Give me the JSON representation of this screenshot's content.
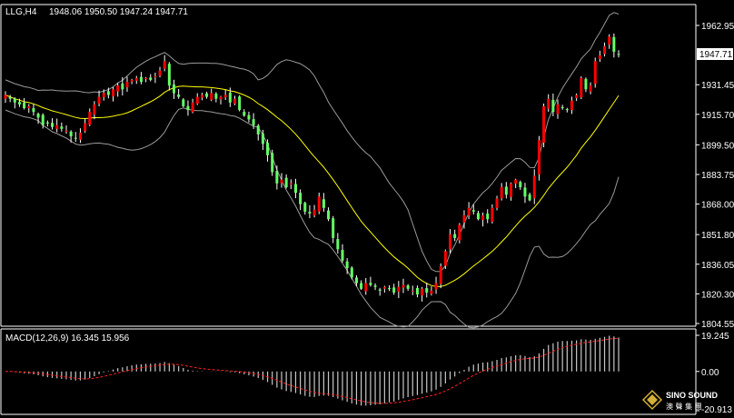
{
  "chart_data": [
    {
      "type": "candlestick",
      "symbol_header": "LLG,H4",
      "ohlc_header": "1948.06 1950.50 1947.24 1947.71",
      "current_price": 1947.71,
      "y_ticks": [
        "1962.95",
        "1947.71",
        "1931.45",
        "1915.70",
        "1899.50",
        "1883.75",
        "1868.00",
        "1851.80",
        "1836.05",
        "1820.30",
        "1804.55"
      ],
      "ylim": [
        1804.55,
        1962.95
      ],
      "colors": {
        "bull": "#ff0000",
        "bear": "#66ff66",
        "ma": "#ffff00",
        "bands": "#9a9a9a",
        "border": "#ffffff"
      },
      "close": [
        1926,
        1924,
        1922,
        1921,
        1919,
        1920,
        1917,
        1914,
        1910,
        1911,
        1909,
        1910,
        1908,
        1907,
        1904,
        1903,
        1906,
        1911,
        1917,
        1921,
        1925,
        1927,
        1926,
        1929,
        1931,
        1929,
        1933,
        1934,
        1935,
        1933,
        1935,
        1934,
        1936,
        1939,
        1944,
        1931,
        1927,
        1925,
        1920,
        1918,
        1922,
        1925,
        1926,
        1925,
        1927,
        1924,
        1925,
        1926,
        1922,
        1924,
        1918,
        1915,
        1913,
        1910,
        1905,
        1900,
        1894,
        1885,
        1879,
        1881,
        1877,
        1879,
        1874,
        1868,
        1864,
        1863,
        1865,
        1872,
        1866,
        1860,
        1850,
        1844,
        1838,
        1834,
        1829,
        1826,
        1823,
        1826,
        1825,
        1824,
        1822,
        1824,
        1823,
        1821,
        1824,
        1825,
        1823,
        1822,
        1820,
        1823,
        1821,
        1822,
        1826,
        1835,
        1843,
        1852,
        1850,
        1857,
        1862,
        1866,
        1864,
        1860,
        1862,
        1860,
        1866,
        1871,
        1877,
        1873,
        1879,
        1881,
        1877,
        1872,
        1870,
        1883,
        1902,
        1920,
        1924,
        1917,
        1921,
        1919,
        1918,
        1923,
        1926,
        1935,
        1929,
        1931,
        1944,
        1947,
        1952,
        1957,
        1949,
        1947.71
      ]
    },
    {
      "type": "histogram",
      "header": "MACD(12,26,9) 16.345 15.956",
      "y_ticks": [
        "19.245",
        "0.00",
        "-20.913"
      ],
      "ylim": [
        -20.913,
        19.245
      ],
      "colors": {
        "histogram": "#c8c8c8",
        "signal": "#ff2020"
      }
    }
  ],
  "watermark": {
    "brand": "SINO SOUND",
    "chinese": "澳 聲 集 團"
  }
}
